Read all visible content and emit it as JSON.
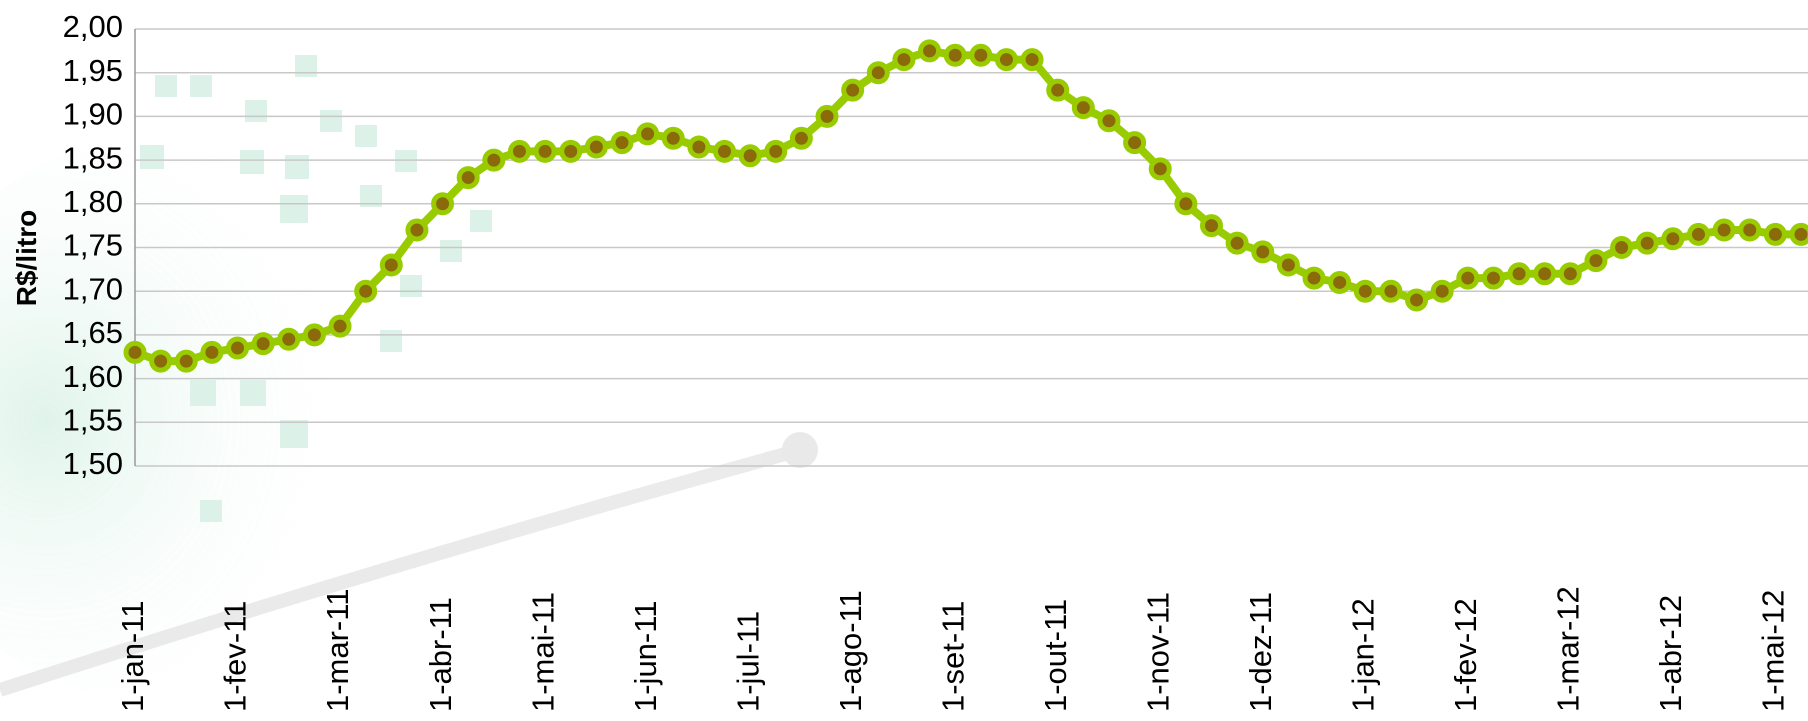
{
  "chart_data": {
    "type": "line",
    "y_label": "R$/litro",
    "categories": [
      "1-jan-11",
      null,
      null,
      null,
      "1-fev-11",
      null,
      null,
      null,
      "1-mar-11",
      null,
      null,
      null,
      "1-abr-11",
      null,
      null,
      null,
      "1-mai-11",
      null,
      null,
      null,
      "1-jun-11",
      null,
      null,
      null,
      "1-jul-11",
      null,
      null,
      null,
      "1-ago-11",
      null,
      null,
      null,
      "1-set-11",
      null,
      null,
      null,
      "1-out-11",
      null,
      null,
      null,
      "1-nov-11",
      null,
      null,
      null,
      "1-dez-11",
      null,
      null,
      null,
      "1-jan-12",
      null,
      null,
      null,
      "1-fev-12",
      null,
      null,
      null,
      "1-mar-12",
      null,
      null,
      null,
      "1-abr-12",
      null,
      null,
      null,
      "1-mai-12",
      null
    ],
    "series": [
      {
        "color": "#99cc00",
        "marker_color": "#8a6a0a",
        "values": [
          1.63,
          1.62,
          1.62,
          1.63,
          1.635,
          1.64,
          1.645,
          1.65,
          1.66,
          1.7,
          1.73,
          1.77,
          1.8,
          1.83,
          1.85,
          1.86,
          1.86,
          1.86,
          1.865,
          1.87,
          1.88,
          1.875,
          1.865,
          1.86,
          1.855,
          1.86,
          1.875,
          1.9,
          1.93,
          1.95,
          1.965,
          1.975,
          1.97,
          1.97,
          1.965,
          1.965,
          1.93,
          1.91,
          1.895,
          1.87,
          1.84,
          1.8,
          1.775,
          1.755,
          1.745,
          1.73,
          1.715,
          1.71,
          1.7,
          1.7,
          1.69,
          1.7,
          1.715,
          1.715,
          1.72,
          1.72,
          1.72,
          1.735,
          1.75,
          1.755,
          1.76,
          1.765,
          1.77,
          1.77,
          1.765,
          1.765
        ]
      }
    ],
    "ylim": [
      1.5,
      2.0
    ],
    "yticks": [
      {
        "value": 1.5,
        "label": "1,50"
      },
      {
        "value": 1.55,
        "label": "1,55"
      },
      {
        "value": 1.6,
        "label": "1,60"
      },
      {
        "value": 1.65,
        "label": "1,65"
      },
      {
        "value": 1.7,
        "label": "1,70"
      },
      {
        "value": 1.75,
        "label": "1,75"
      },
      {
        "value": 1.8,
        "label": "1,80"
      },
      {
        "value": 1.85,
        "label": "1,85"
      },
      {
        "value": 1.9,
        "label": "1,90"
      },
      {
        "value": 1.95,
        "label": "1,95"
      },
      {
        "value": 2.0,
        "label": "2,00"
      }
    ],
    "grid": true
  }
}
